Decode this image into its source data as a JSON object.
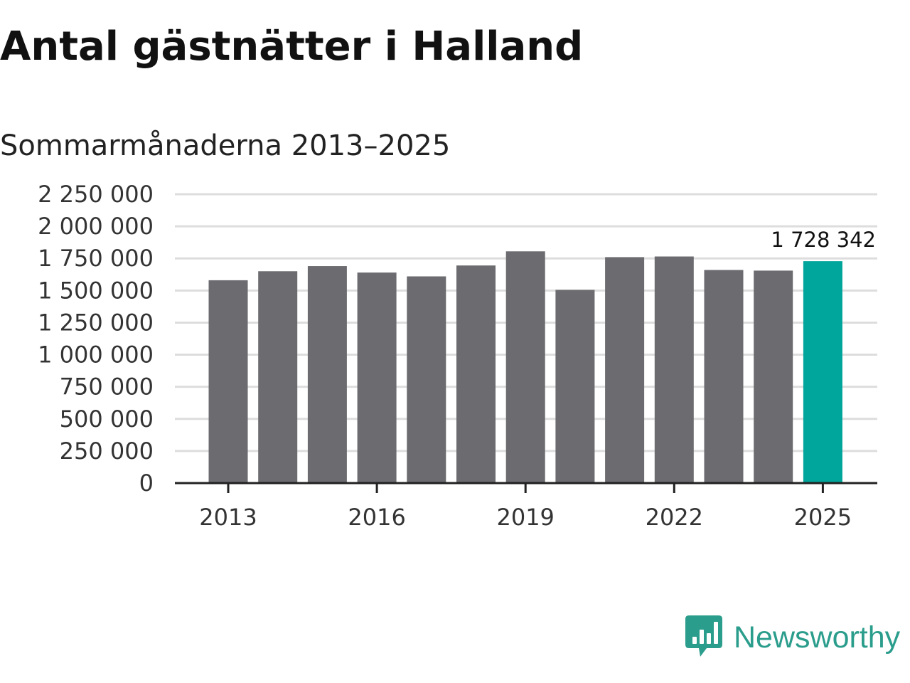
{
  "header": {
    "title": "Antal gästnätter i Halland",
    "subtitle": "Sommarmånaderna 2013–2025"
  },
  "brand": {
    "name": "Newsworthy",
    "icon": "bar-chart-speech-bubble-icon",
    "color": "#2b9d8c"
  },
  "chart_data": {
    "type": "bar",
    "title": "Antal gästnätter i Halland",
    "subtitle": "Sommarmånaderna 2013–2025",
    "xlabel": "",
    "ylabel": "",
    "categories": [
      "2013",
      "2014",
      "2015",
      "2016",
      "2017",
      "2018",
      "2019",
      "2020",
      "2021",
      "2022",
      "2023",
      "2024",
      "2025"
    ],
    "values": [
      1580000,
      1650000,
      1690000,
      1640000,
      1610000,
      1695000,
      1805000,
      1505000,
      1760000,
      1765000,
      1660000,
      1655000,
      1728342
    ],
    "ylim": [
      0,
      2250000
    ],
    "yticks": [
      0,
      250000,
      500000,
      750000,
      1000000,
      1250000,
      1500000,
      1750000,
      2000000,
      2250000
    ],
    "ytick_labels": [
      "0",
      "250 000",
      "500 000",
      "750 000",
      "1 000 000",
      "1 250 000",
      "1 500 000",
      "1 750 000",
      "2 000 000",
      "2 250 000"
    ],
    "xtick_labels": [
      "2013",
      "2016",
      "2019",
      "2022",
      "2025"
    ],
    "grid": true,
    "colors": {
      "bar": "#6b6b70",
      "highlight": "#00a59b",
      "grid": "#dddddd",
      "axis": "#222222"
    },
    "highlight_index": 12,
    "data_label": "1 728 342"
  }
}
